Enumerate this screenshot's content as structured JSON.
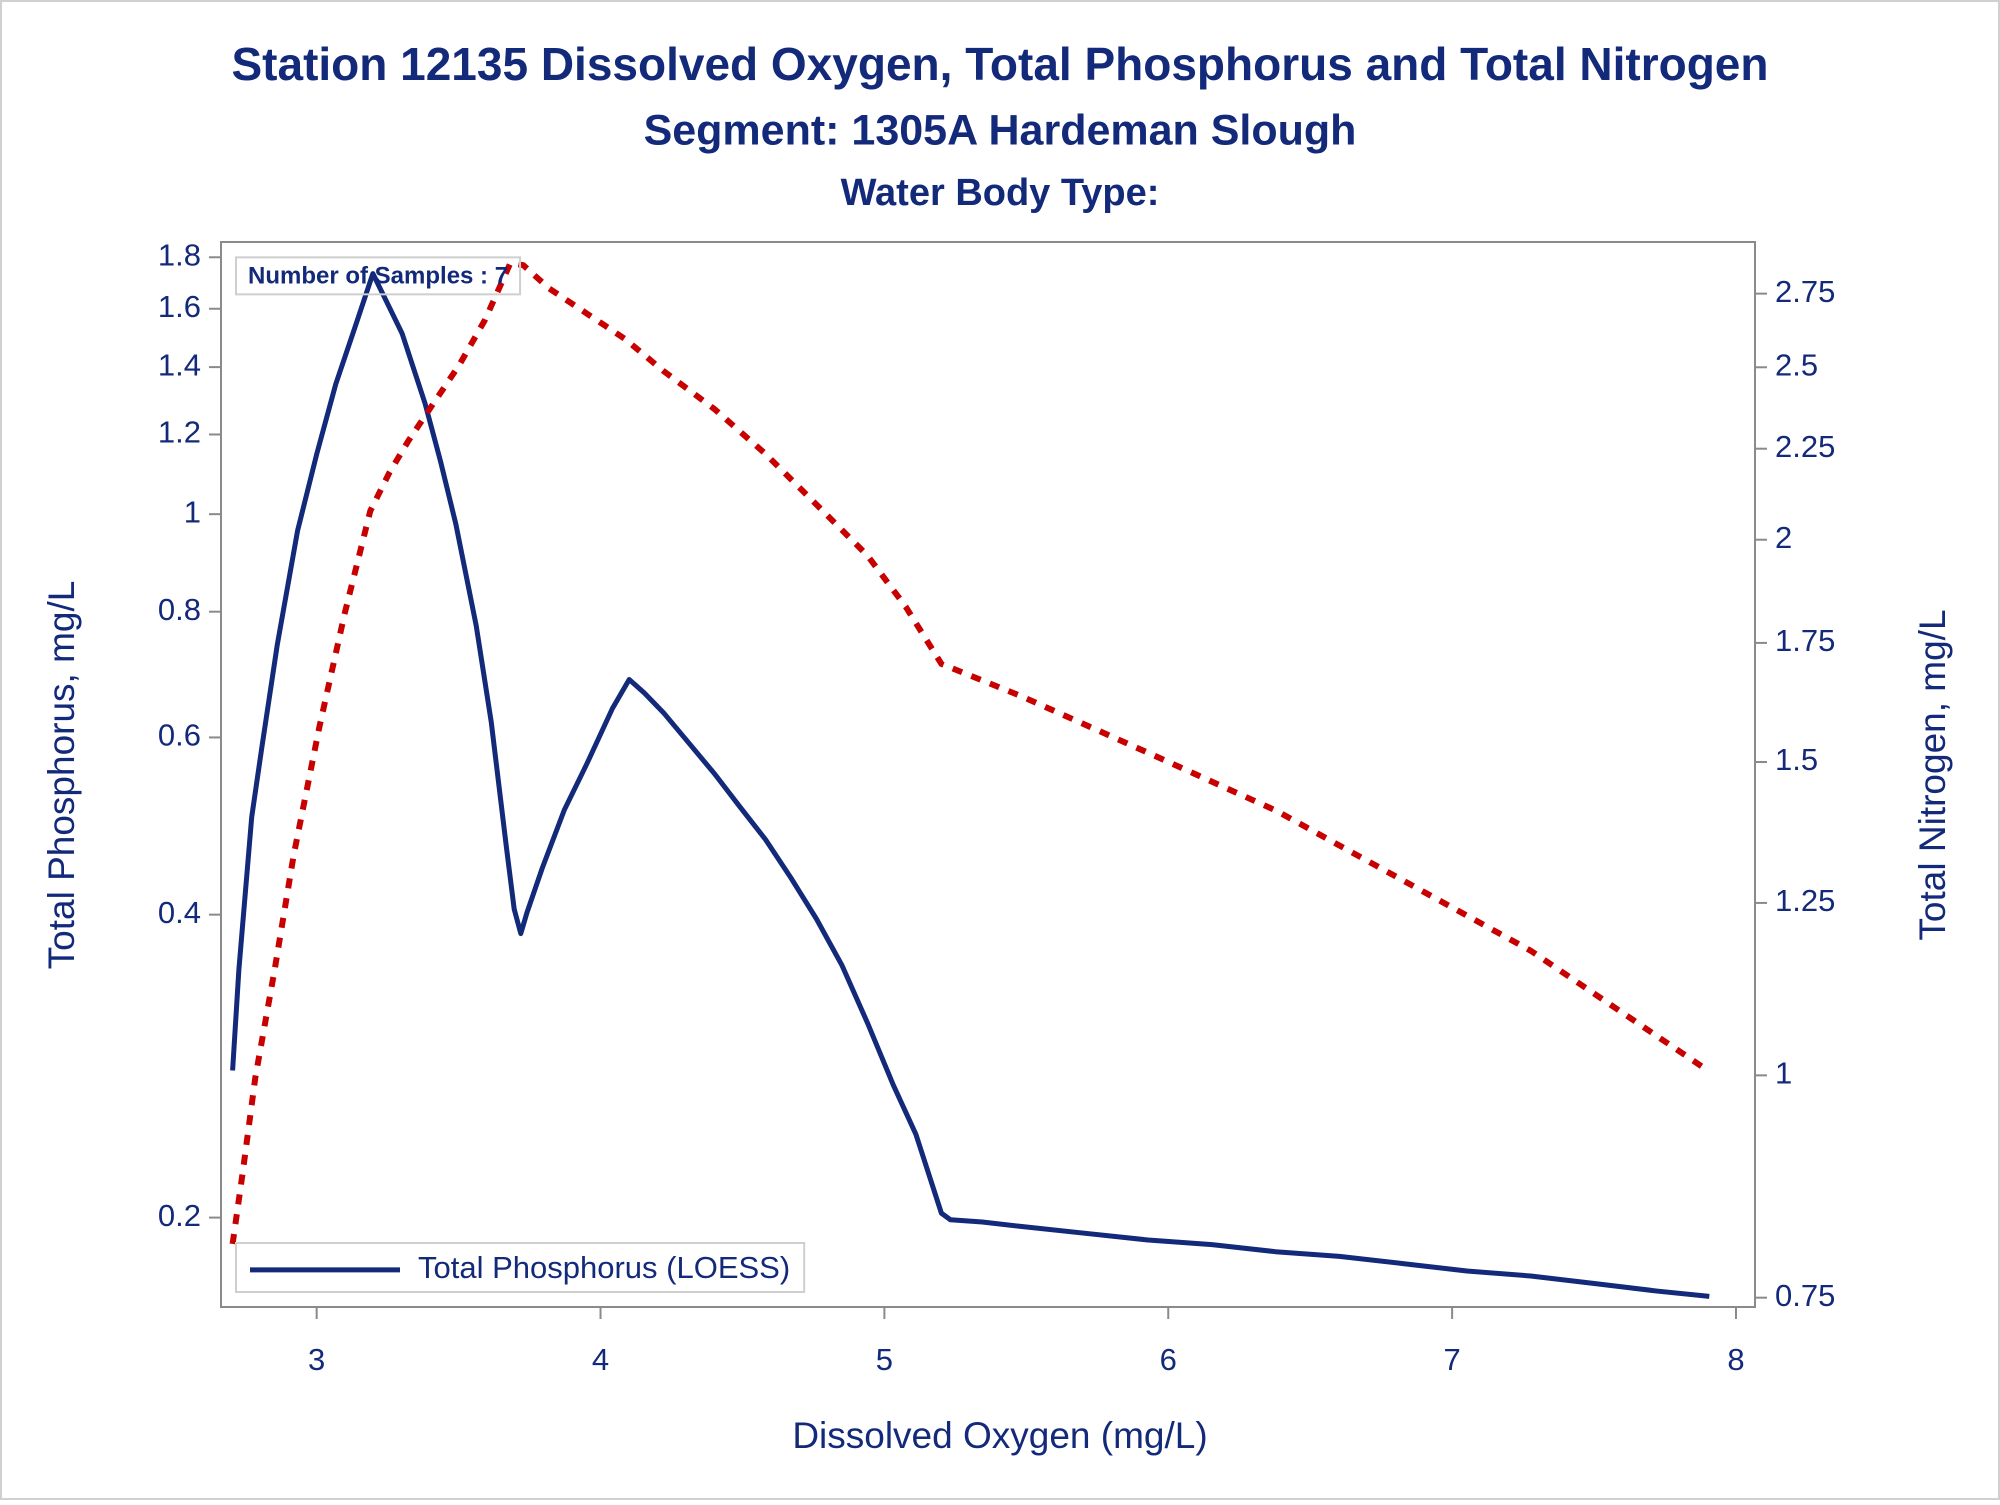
{
  "chart_data": {
    "type": "line",
    "title": "Station 12135  Dissolved Oxygen, Total Phosphorus and Total Nitrogen",
    "subtitle": "Segment: 1305A  Hardeman Slough",
    "subtitle2": "Water Body Type:",
    "annotation": "Number of Samples : 7",
    "xlabel": "Dissolved Oxygen (mg/L)",
    "ylabel": "Total Phosphorus, mg/L",
    "y2label": "Total Nitrogen, mg/L",
    "xlim": [
      2.663,
      8.067
    ],
    "xticks": [
      3,
      4,
      5,
      6,
      7,
      8
    ],
    "ylim": [
      0.163,
      1.864
    ],
    "yticks": [
      0.2,
      0.4,
      0.6,
      0.8,
      1,
      1.2,
      1.4,
      1.6,
      1.8
    ],
    "yscale": "log",
    "y2lim": [
      0.741,
      2.94
    ],
    "y2ticks": [
      0.75,
      1,
      1.25,
      1.5,
      1.75,
      2,
      2.25,
      2.5,
      2.75
    ],
    "y2scale": "log",
    "grid": false,
    "legend": "bottom-left",
    "series": [
      {
        "name": "Total Phosphorus (LOESS)",
        "color": "#13297a",
        "style": "solid",
        "x": [
          2.704,
          2.726,
          2.771,
          2.807,
          2.861,
          2.933,
          3.0,
          3.067,
          3.135,
          3.198,
          3.301,
          3.382,
          3.436,
          3.49,
          3.562,
          3.615,
          3.669,
          3.696,
          3.719,
          3.741,
          3.795,
          3.872,
          3.952,
          4.042,
          4.101,
          4.155,
          4.222,
          4.312,
          4.402,
          4.491,
          4.581,
          4.671,
          4.761,
          4.851,
          4.941,
          5.031,
          5.111,
          5.201,
          5.233,
          5.345,
          5.48,
          5.704,
          5.929,
          6.154,
          6.378,
          6.603,
          6.827,
          7.052,
          7.277,
          7.501,
          7.726,
          7.906
        ],
        "values": [
          0.28,
          0.353,
          0.5,
          0.587,
          0.741,
          0.963,
          1.147,
          1.346,
          1.534,
          1.734,
          1.512,
          1.288,
          1.13,
          0.978,
          0.775,
          0.622,
          0.465,
          0.405,
          0.383,
          0.402,
          0.445,
          0.508,
          0.565,
          0.641,
          0.685,
          0.664,
          0.635,
          0.592,
          0.552,
          0.512,
          0.475,
          0.435,
          0.396,
          0.356,
          0.312,
          0.271,
          0.242,
          0.202,
          0.199,
          0.198,
          0.196,
          0.193,
          0.19,
          0.188,
          0.185,
          0.183,
          0.18,
          0.177,
          0.175,
          0.172,
          0.169,
          0.167
        ]
      },
      {
        "color": "#c80000",
        "style": "dotted",
        "axis": "y2",
        "x": [
          2.704,
          2.739,
          2.784,
          2.852,
          2.919,
          3.009,
          3.099,
          3.189,
          3.256,
          3.323,
          3.413,
          3.503,
          3.593,
          3.683,
          3.728,
          3.818,
          3.952,
          4.087,
          4.222,
          4.402,
          4.581,
          4.761,
          4.941,
          5.075,
          5.201,
          5.48,
          5.929,
          6.378,
          6.827,
          7.277,
          7.906
        ],
        "values": [
          0.804,
          0.881,
          0.997,
          1.147,
          1.33,
          1.568,
          1.819,
          2.076,
          2.181,
          2.273,
          2.388,
          2.508,
          2.658,
          2.862,
          2.853,
          2.769,
          2.68,
          2.593,
          2.488,
          2.368,
          2.235,
          2.093,
          1.959,
          1.834,
          1.703,
          1.634,
          1.518,
          1.409,
          1.287,
          1.175,
          1.005
        ]
      }
    ]
  }
}
